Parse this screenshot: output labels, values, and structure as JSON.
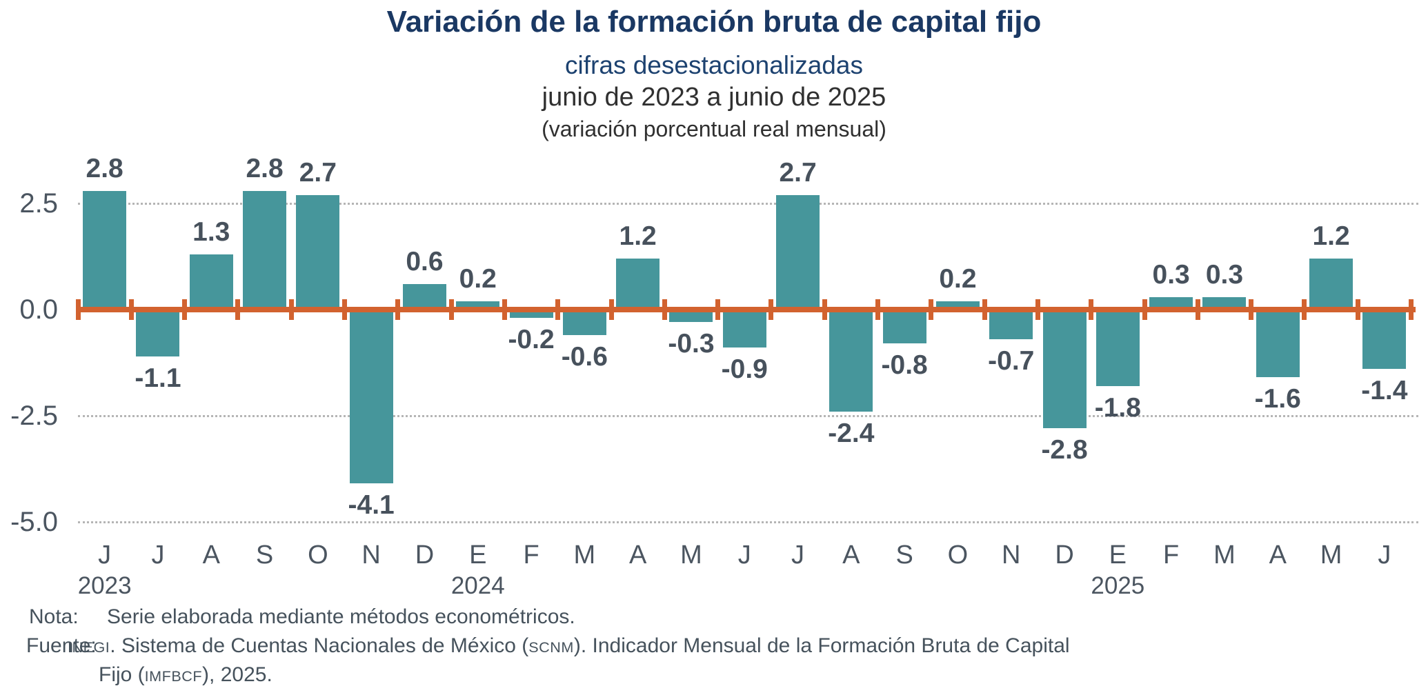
{
  "header": {
    "title": "Variación de la formación bruta de capital fijo",
    "subtitle": "cifras desestacionalizadas",
    "period": "junio de 2023 a junio de 2025",
    "unit": "(variación porcentual real mensual)"
  },
  "chart_data": {
    "type": "bar",
    "title": "Variación de la formación bruta de capital fijo",
    "subtitle": "cifras desestacionalizadas",
    "period": "junio de 2023 a junio de 2025",
    "unit_note": "(variación porcentual real mensual)",
    "categories": [
      "J",
      "J",
      "A",
      "S",
      "O",
      "N",
      "D",
      "E",
      "F",
      "M",
      "A",
      "M",
      "J",
      "J",
      "A",
      "S",
      "O",
      "N",
      "D",
      "E",
      "F",
      "M",
      "A",
      "M",
      "J"
    ],
    "values": [
      2.8,
      -1.1,
      1.3,
      2.8,
      2.7,
      -4.1,
      0.6,
      0.2,
      -0.2,
      -0.6,
      1.2,
      -0.3,
      -0.9,
      2.7,
      -2.4,
      -0.8,
      0.2,
      -0.7,
      -2.8,
      -1.8,
      0.3,
      0.3,
      -1.6,
      1.2,
      -1.4
    ],
    "year_markers": [
      {
        "label": "2023",
        "slot_index": 0
      },
      {
        "label": "2024",
        "slot_index": 7
      },
      {
        "label": "2025",
        "slot_index": 19
      }
    ],
    "y_tick_labels": [
      "2.5",
      "0.0",
      "-2.5",
      "-5.0"
    ],
    "y_tick_values": [
      2.5,
      0.0,
      -2.5,
      -5.0
    ],
    "gridline_values": [
      2.5,
      -2.5,
      -5.0
    ],
    "ylim": [
      -5.0,
      3.2
    ],
    "xlabel": "",
    "ylabel": "",
    "legend": "none",
    "grid": "horizontal-dotted",
    "colors": {
      "bar": "#46969B",
      "zero_axis": "#D2622F",
      "gridline": "#B5B5B5",
      "tick_text": "#4B5560",
      "value_text": "#47515C",
      "title_text": "#1A3863",
      "subtitle_text": "#1D4270"
    }
  },
  "notes": {
    "nota_label": "Nota:",
    "nota_text": "Serie elaborada mediante métodos econométricos.",
    "fuente_label": "Fuente:",
    "fuente_line1_segments": [
      {
        "text": "INEGI",
        "small_caps": true
      },
      {
        "text": ". Sistema de Cuentas Nacionales de México (",
        "small_caps": false
      },
      {
        "text": "SCNM",
        "small_caps": true
      },
      {
        "text": "). Indicador Mensual de la Formación Bruta de Capital",
        "small_caps": false
      }
    ],
    "fuente_line2_segments": [
      {
        "text": "Fijo (",
        "small_caps": false
      },
      {
        "text": "IMFBCF",
        "small_caps": true
      },
      {
        "text": "), 2025.",
        "small_caps": false
      }
    ]
  }
}
